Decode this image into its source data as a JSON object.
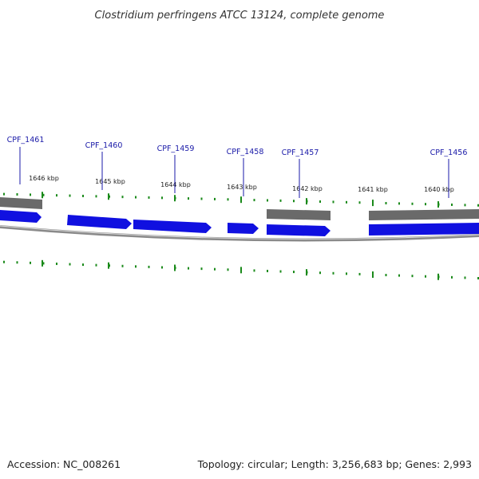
{
  "title": "Clostridium perfringens ATCC 13124, complete genome",
  "footer": {
    "accession": "Accession: NC_008261",
    "topology": "Topology: circular; Length: 3,256,683 bp; Genes: 2,993"
  },
  "ticks": [
    {
      "label": "1646 kbp"
    },
    {
      "label": "1645 kbp"
    },
    {
      "label": "1644 kbp"
    },
    {
      "label": "1643 kbp"
    },
    {
      "label": "1642 kbp"
    },
    {
      "label": "1641 kbp"
    },
    {
      "label": "1640 kbp"
    }
  ],
  "genes": [
    {
      "label": "CPF_1461"
    },
    {
      "label": "CPF_1460"
    },
    {
      "label": "CPF_1459"
    },
    {
      "label": "CPF_1458"
    },
    {
      "label": "CPF_1457"
    },
    {
      "label": ""
    },
    {
      "label": "CPF_1456"
    }
  ],
  "colors": {
    "forward_gene": "#1010e0",
    "reverse_gene": "#6a6a6a",
    "backbone": "#8a8a8a",
    "ticks": "#1a8a1a",
    "gene_label": "#1a1aa8"
  }
}
